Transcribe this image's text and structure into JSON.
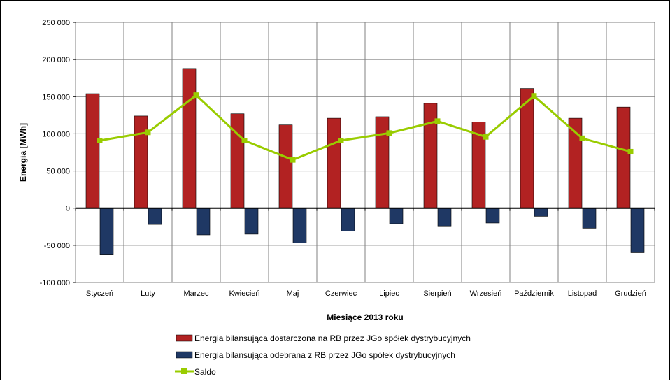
{
  "chart_data": {
    "type": "bar",
    "categories": [
      "Styczeń",
      "Luty",
      "Marzec",
      "Kwiecień",
      "Maj",
      "Czerwiec",
      "Lipiec",
      "Sierpień",
      "Wrzesień",
      "Październik",
      "Listopad",
      "Grudzień"
    ],
    "series": [
      {
        "name": "Energia bilansująca dostarczona na RB przez JGo spółek dystrybucyjnych",
        "type": "bar",
        "color": "#b22222",
        "values": [
          154000,
          124000,
          188000,
          127000,
          112000,
          121000,
          123000,
          141000,
          116000,
          161000,
          121000,
          136000
        ]
      },
      {
        "name": "Energia bilansująca odebrana z RB przez JGo spółek dystrybucyjnych",
        "type": "bar",
        "color": "#1f3864",
        "values": [
          -63000,
          -22000,
          -36000,
          -35000,
          -47000,
          -31000,
          -21000,
          -24000,
          -20000,
          -11000,
          -27000,
          -60000
        ]
      },
      {
        "name": "Saldo",
        "type": "line",
        "color": "#99cc00",
        "values": [
          91000,
          102000,
          152000,
          91000,
          65000,
          91000,
          101000,
          117000,
          96000,
          151000,
          94000,
          76000
        ]
      }
    ],
    "ylabel": "Energia [MWh]",
    "xlabel": "Miesiące 2013  roku",
    "ylim": [
      -100000,
      250000
    ],
    "yticks": [
      250000,
      200000,
      150000,
      100000,
      50000,
      0,
      -50000,
      -100000
    ],
    "ytick_labels": [
      "250 000",
      "200 000",
      "150 000",
      "100 000",
      "50 000",
      "0",
      "-50 000",
      "-100 000"
    ],
    "grid": true,
    "legend_position": "bottom"
  }
}
